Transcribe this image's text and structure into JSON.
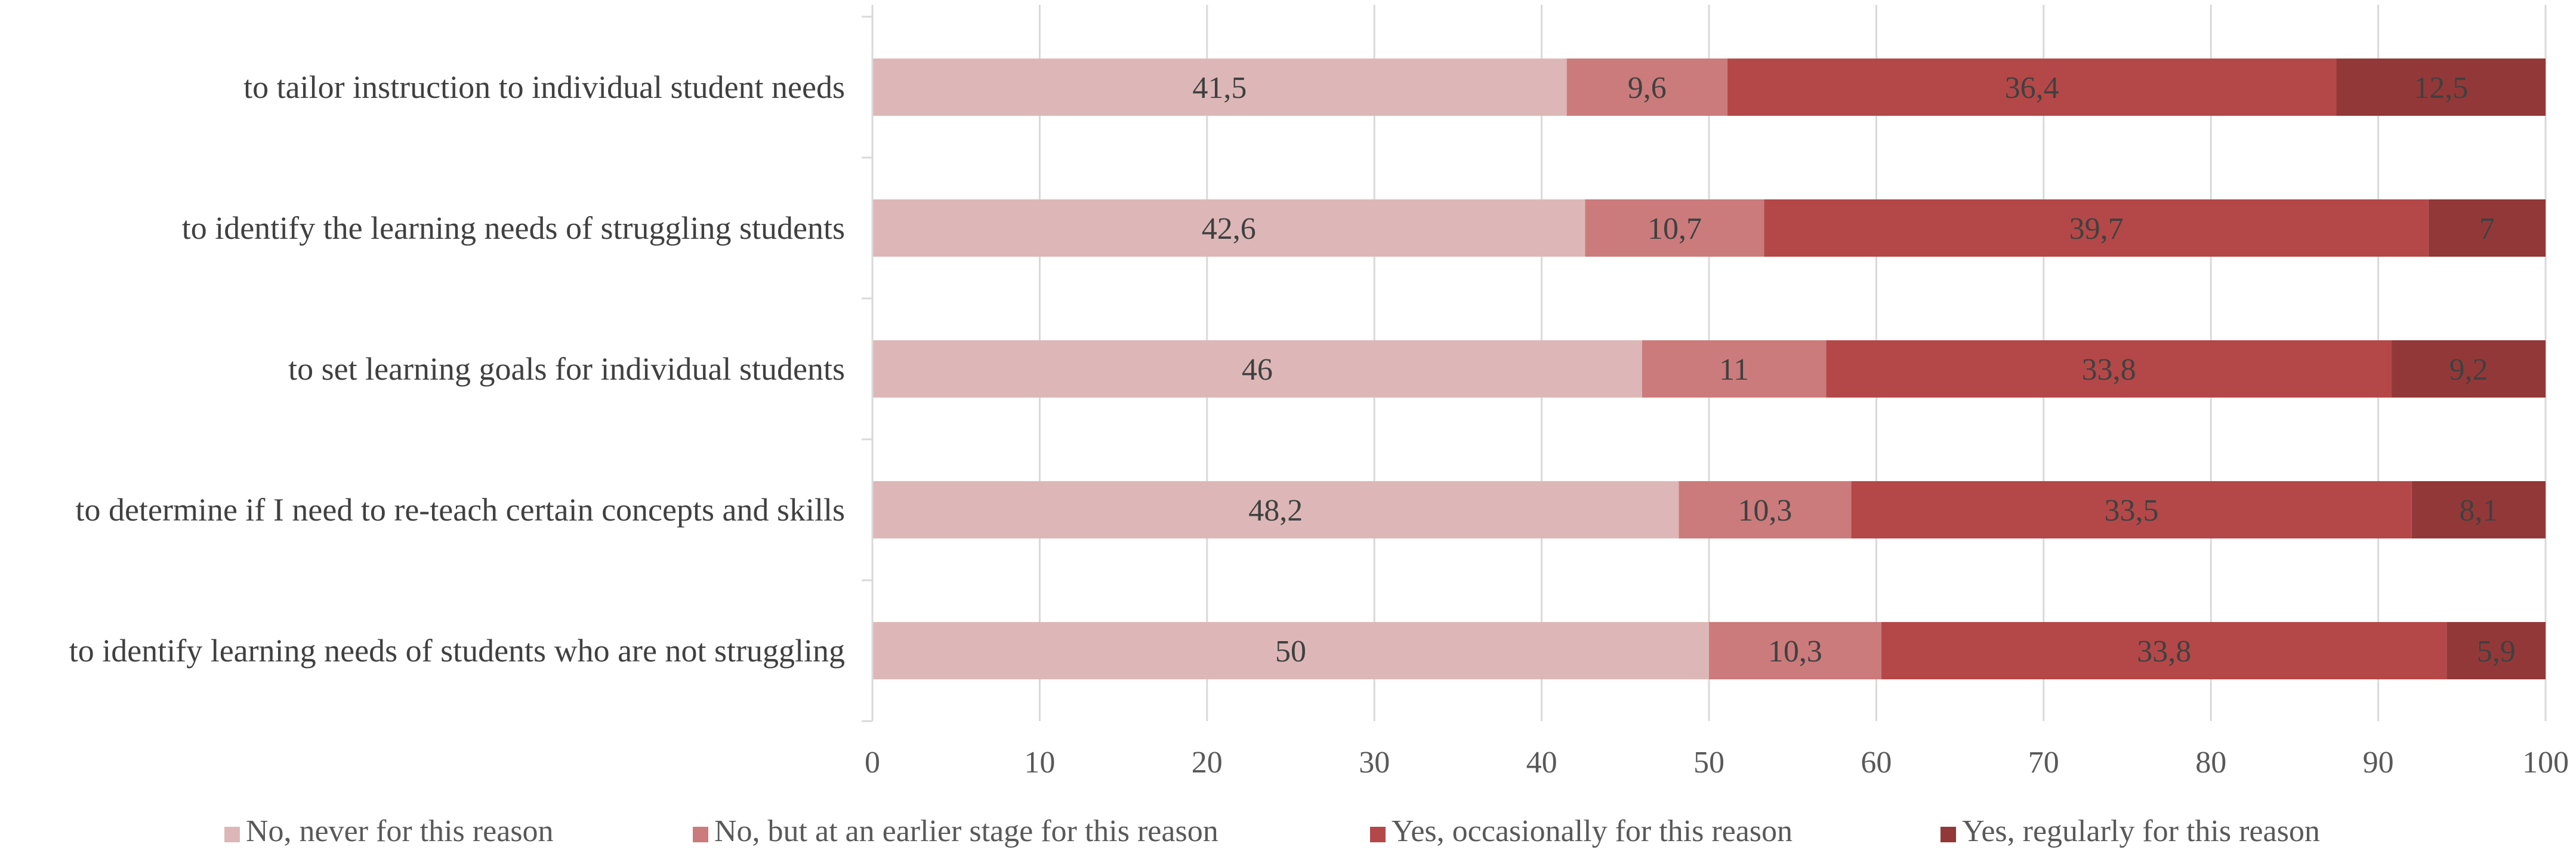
{
  "chart_data": {
    "type": "bar",
    "orientation": "horizontal",
    "stacked": true,
    "categories": [
      "to tailor instruction to individual student needs",
      "to identify the learning needs of struggling students",
      "to set learning goals for individual students",
      "to determine if I need to re-teach certain concepts and skills",
      "to identify learning needs of students who are not struggling"
    ],
    "series": [
      {
        "name": "No, never for this reason",
        "color": "#ddb7b7",
        "values": [
          41.5,
          42.6,
          46,
          48.2,
          50
        ],
        "labels": [
          "41,5",
          "42,6",
          "46",
          "48,2",
          "50"
        ]
      },
      {
        "name": "No, but at an earlier stage for this reason",
        "color": "#cb7b7b",
        "values": [
          9.6,
          10.7,
          11,
          10.3,
          10.3
        ],
        "labels": [
          "9,6",
          "10,7",
          "11",
          "10,3",
          "10,3"
        ]
      },
      {
        "name": "Yes, occasionally for this reason",
        "color": "#b44848",
        "values": [
          36.4,
          39.7,
          33.8,
          33.5,
          33.8
        ],
        "labels": [
          "36,4",
          "39,7",
          "33,8",
          "33,5",
          "33,8"
        ]
      },
      {
        "name": "Yes, regularly for this reason",
        "color": "#933838",
        "values": [
          12.5,
          7,
          9.2,
          8.1,
          5.9
        ],
        "labels": [
          "12,5",
          "7",
          "9,2",
          "8,1",
          "5,9"
        ]
      }
    ],
    "xlim": [
      0,
      100
    ],
    "xticks": [
      0,
      10,
      20,
      30,
      40,
      50,
      60,
      70,
      80,
      90,
      100
    ],
    "grid": true,
    "legend": "bottom",
    "title": "",
    "xlabel": "",
    "ylabel": ""
  }
}
